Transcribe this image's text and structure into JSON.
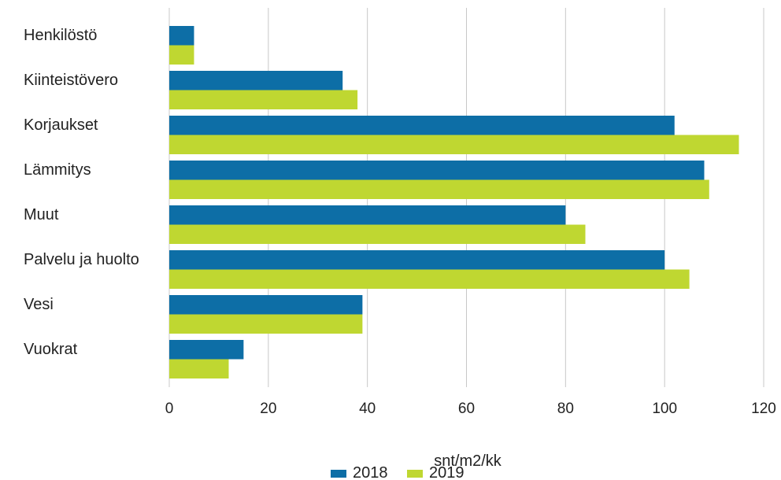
{
  "chart_data": {
    "type": "bar",
    "orientation": "horizontal",
    "categories": [
      "Henkilöstö",
      "Kiinteistövero",
      "Korjaukset",
      "Lämmitys",
      "Muut",
      "Palvelu ja huolto",
      "Vesi",
      "Vuokrat"
    ],
    "series": [
      {
        "name": "2018",
        "color": "#0d6ea6",
        "values": [
          5,
          35,
          102,
          108,
          80,
          100,
          39,
          15
        ]
      },
      {
        "name": "2019",
        "color": "#bfd731",
        "values": [
          5,
          38,
          115,
          109,
          84,
          105,
          39,
          12
        ]
      }
    ],
    "xlabel": "snt/m2/kk",
    "ylabel": "",
    "xlim": [
      0,
      120
    ],
    "xticks": [
      "0",
      "20",
      "40",
      "60",
      "80",
      "100",
      "120"
    ],
    "grid": true,
    "legend_position": "bottom"
  }
}
